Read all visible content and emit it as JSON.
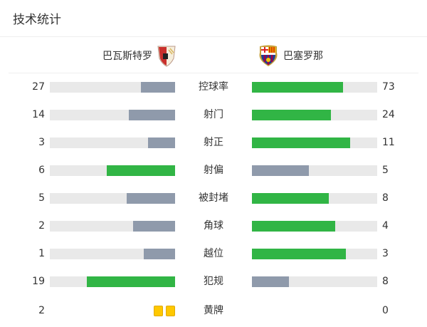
{
  "title": "技术统计",
  "home": {
    "name": "巴瓦斯特罗",
    "logo": "sd-huesca-crest"
  },
  "away": {
    "name": "巴塞罗那",
    "logo": "fc-barcelona-crest"
  },
  "colors": {
    "leading": "#31b545",
    "trailing": "#8f9aab",
    "track": "#e9e9e9",
    "yellow_card": "#ffc800"
  },
  "stats": [
    {
      "label": "控球率",
      "home": 27,
      "away": 73
    },
    {
      "label": "射门",
      "home": 14,
      "away": 24
    },
    {
      "label": "射正",
      "home": 3,
      "away": 11
    },
    {
      "label": "射偏",
      "home": 6,
      "away": 5
    },
    {
      "label": "被封堵",
      "home": 5,
      "away": 8
    },
    {
      "label": "角球",
      "home": 2,
      "away": 4
    },
    {
      "label": "越位",
      "home": 1,
      "away": 3
    },
    {
      "label": "犯规",
      "home": 19,
      "away": 8
    }
  ],
  "yellow_cards": {
    "label": "黄牌",
    "home": 2,
    "away": 0
  }
}
